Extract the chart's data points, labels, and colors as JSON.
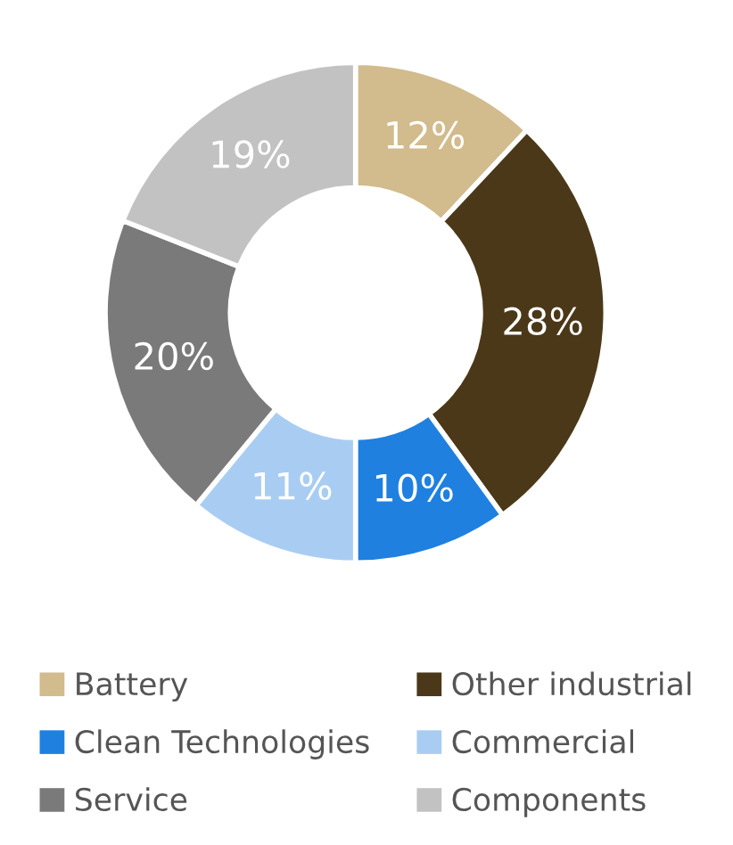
{
  "chart_data": {
    "type": "donut",
    "categories": [
      "Battery",
      "Other industrial",
      "Clean Technologies",
      "Commercial",
      "Service",
      "Components"
    ],
    "values": [
      12,
      28,
      10,
      11,
      20,
      19
    ],
    "value_labels": [
      "12%",
      "28%",
      "10%",
      "11%",
      "20%",
      "19%"
    ],
    "colors": [
      "#d2bb8c",
      "#4b3818",
      "#1f80e0",
      "#a9cdf2",
      "#7a7a7a",
      "#c2c2c2"
    ],
    "legend": "bottom"
  }
}
